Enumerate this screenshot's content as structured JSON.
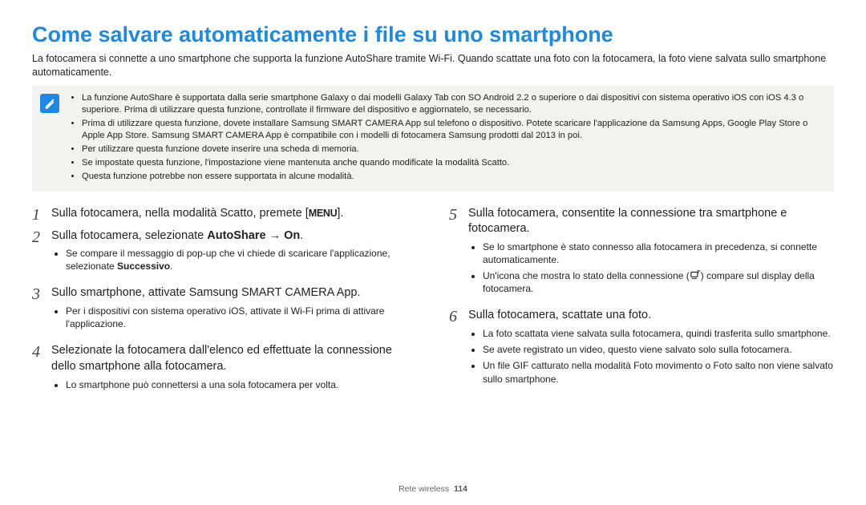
{
  "title": {
    "text": "Come salvare automaticamente i file su uno smartphone",
    "color": "#1e8ade"
  },
  "intro": "La fotocamera si connette a uno smartphone che supporta la funzione AutoShare tramite Wi-Fi. Quando scattate una foto con la fotocamera, la foto viene salvata sullo smartphone automaticamente.",
  "notebox": {
    "bg": "#f2f3ee",
    "icon_bg": "#1e88e5",
    "items": [
      "La funzione AutoShare è supportata dalla serie smartphone Galaxy o dai modelli Galaxy Tab con SO Android 2.2 o superiore o dai dispositivi con sistema operativo iOS con iOS 4.3 o superiore. Prima di utilizzare questa funzione, controllate il firmware del dispositivo e aggiornatelo, se necessario.",
      "Prima di utilizzare questa funzione, dovete installare Samsung SMART CAMERA App sul telefono o dispositivo. Potete scaricare l'applicazione da Samsung Apps, Google Play Store o Apple App Store. Samsung SMART CAMERA App è compatibile con i modelli di fotocamera Samsung prodotti dal 2013 in poi.",
      "Per utilizzare questa funzione dovete inserire una scheda di memoria.",
      "Se impostate questa funzione, l'impostazione viene mantenuta anche quando modificate la modalità Scatto.",
      "Questa funzione potrebbe non essere supportata in alcune modalità."
    ]
  },
  "left_steps": [
    {
      "num": "1",
      "text_pre": "Sulla fotocamera, nella modalità Scatto, premete [",
      "menu_label": "MENU",
      "text_post": "]."
    },
    {
      "num": "2",
      "html": "Sulla fotocamera, selezionate <b>AutoShare</b> → <b>On</b>.",
      "bullets_html": [
        "Se compare il messaggio di pop-up che vi chiede di scaricare l'applicazione, selezionate <b>Successivo</b>."
      ]
    },
    {
      "num": "3",
      "text": "Sullo smartphone, attivate Samsung SMART CAMERA App.",
      "bullets": [
        "Per i dispositivi con sistema operativo iOS, attivate il Wi-Fi prima di attivare l'applicazione."
      ]
    },
    {
      "num": "4",
      "text": "Selezionate la fotocamera dall'elenco ed effettuate la connessione dello smartphone alla fotocamera.",
      "bullets": [
        "Lo smartphone può connettersi a una sola fotocamera per volta."
      ]
    }
  ],
  "right_steps": [
    {
      "num": "5",
      "text": "Sulla fotocamera, consentite la connessione tra smartphone e fotocamera.",
      "bullets_special": [
        {
          "text": "Se lo smartphone è stato connesso alla fotocamera in precedenza, si connette automaticamente."
        },
        {
          "pre": "Un'icona che mostra lo stato della connessione (",
          "icon": true,
          "post": ") compare sul display della fotocamera."
        }
      ]
    },
    {
      "num": "6",
      "text": "Sulla fotocamera, scattate una foto.",
      "bullets": [
        "La foto scattata viene salvata sulla fotocamera, quindi trasferita sullo smartphone.",
        "Se avete registrato un video, questo viene salvato solo sulla fotocamera.",
        "Un file GIF catturato nella modalità Foto movimento o Foto salto non viene salvato sullo smartphone."
      ]
    }
  ],
  "footer": {
    "label": "Rete wireless",
    "page": "114"
  }
}
